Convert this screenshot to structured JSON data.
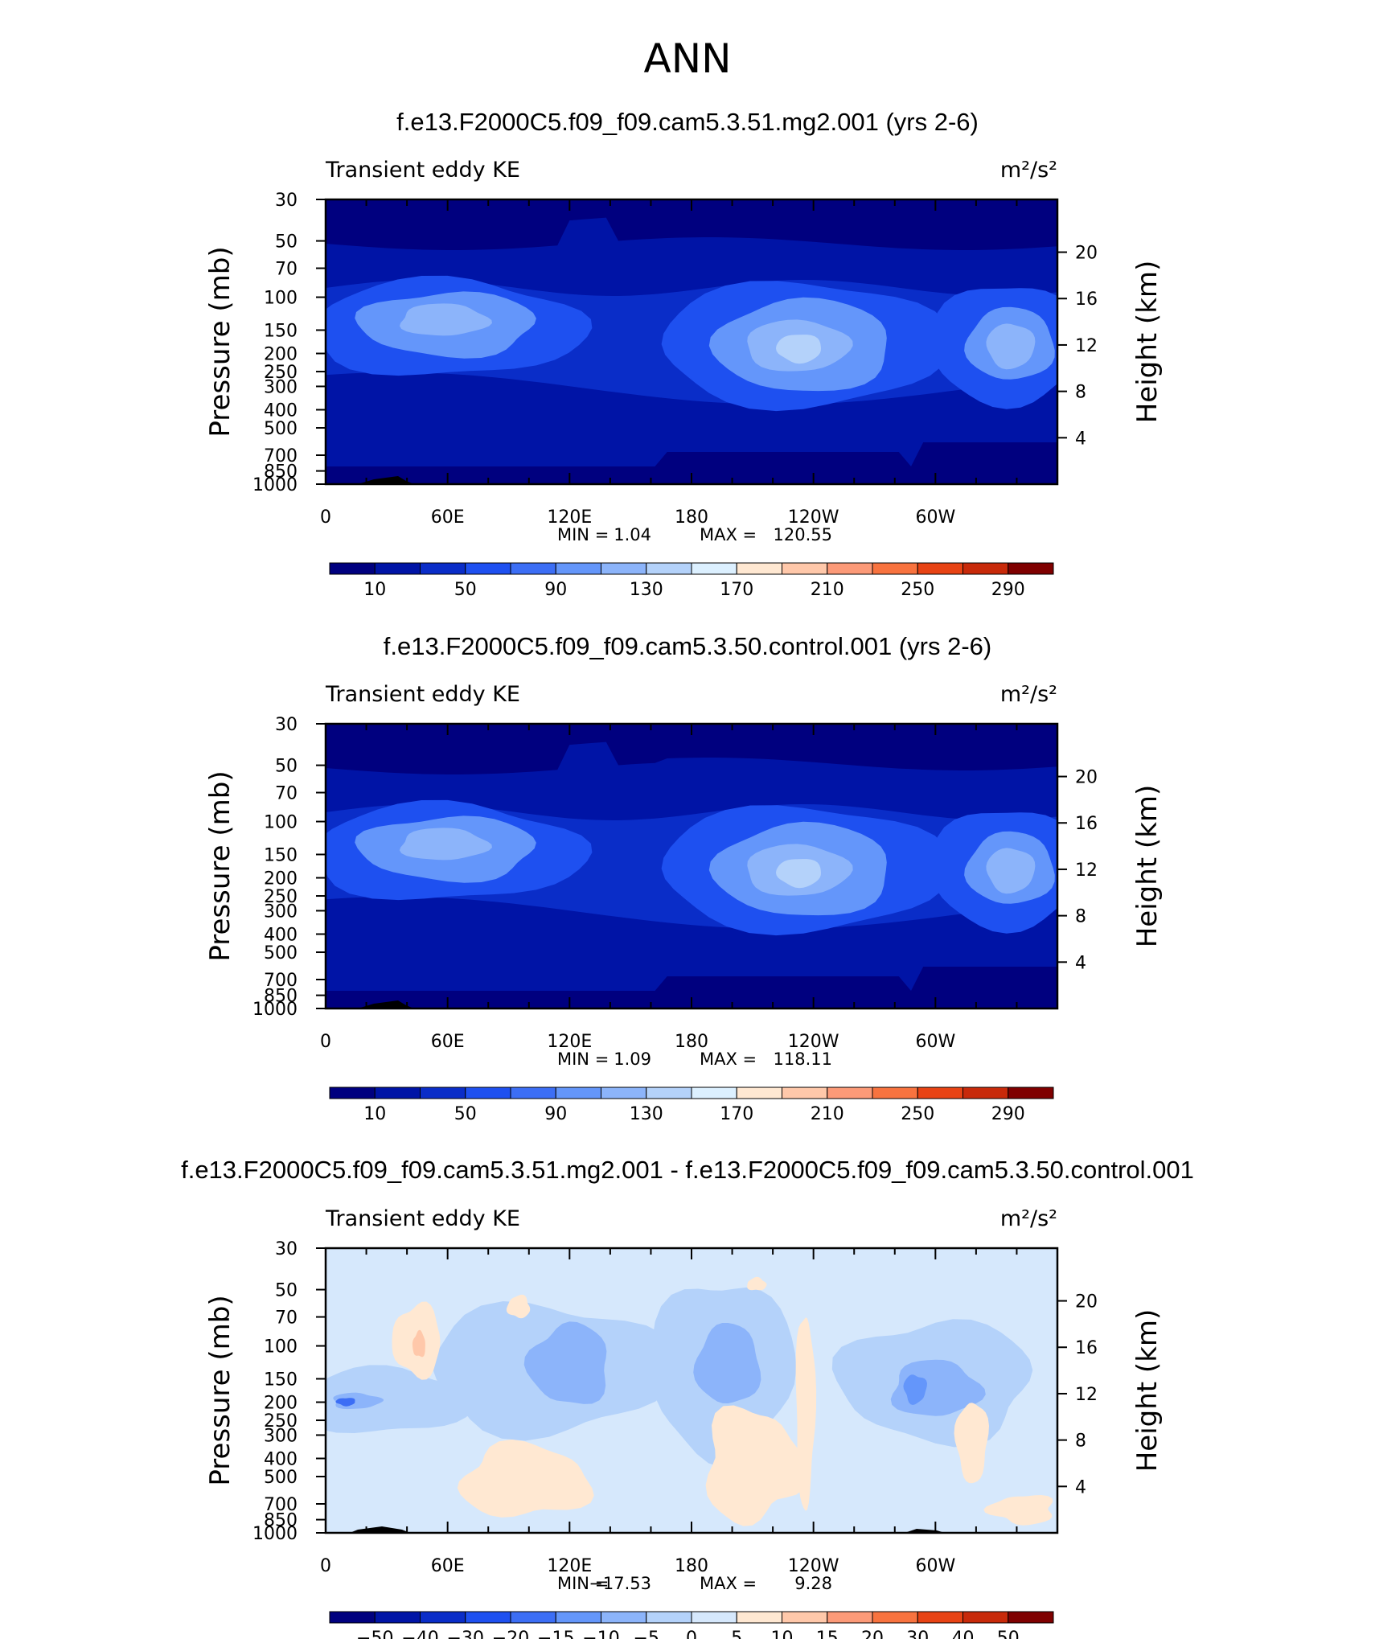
{
  "main_title": "ANN",
  "panels": [
    {
      "title": "f.e13.F2000C5.f09_f09.cam5.3.51.mg2.001 (yrs 2-6)",
      "variable": "Transient eddy KE",
      "units": "m²/s²",
      "min_label": "MIN =",
      "min_value": "1.04",
      "max_label": "MAX =",
      "max_value": "120.55",
      "colorbar_labels": [
        "10",
        "50",
        "90",
        "130",
        "170",
        "210",
        "250",
        "290"
      ]
    },
    {
      "title": "f.e13.F2000C5.f09_f09.cam5.3.50.control.001 (yrs 2-6)",
      "variable": "Transient eddy KE",
      "units": "m²/s²",
      "min_label": "MIN =",
      "min_value": "1.09",
      "max_label": "MAX =",
      "max_value": "118.11",
      "colorbar_labels": [
        "10",
        "50",
        "90",
        "130",
        "170",
        "210",
        "250",
        "290"
      ]
    },
    {
      "title": "f.e13.F2000C5.f09_f09.cam5.3.51.mg2.001 - f.e13.F2000C5.f09_f09.cam5.3.50.control.001",
      "variable": "Transient eddy KE",
      "units": "m²/s²",
      "min_label": "MIN =",
      "min_value": "−17.53",
      "max_label": "MAX =",
      "max_value": "9.28",
      "colorbar_labels": [
        "−50",
        "−40",
        "−30",
        "−20",
        "−15",
        "−10",
        "−5",
        "0",
        "5",
        "10",
        "15",
        "20",
        "30",
        "40",
        "50"
      ]
    }
  ],
  "axes": {
    "y_left_label": "Pressure (mb)",
    "y_right_label": "Height (km)",
    "x_ticks": [
      "0",
      "60E",
      "120E",
      "180",
      "120W",
      "60W"
    ],
    "pressure_ticks": [
      "30",
      "50",
      "70",
      "100",
      "150",
      "200",
      "250",
      "300",
      "400",
      "500",
      "700",
      "850",
      "1000"
    ],
    "height_ticks": [
      "20",
      "16",
      "12",
      "8",
      "4"
    ]
  },
  "chart_data": [
    {
      "type": "heatmap",
      "title": "f.e13.F2000C5.f09_f09.cam5.3.51.mg2.001 (yrs 2-6)",
      "variable": "Transient eddy KE",
      "units": "m²/s²",
      "x_dimension": "longitude",
      "x_ticks": [
        "0",
        "60E",
        "120E",
        "180",
        "120W",
        "60W"
      ],
      "y_dimension": "pressure (mb), log scale",
      "ylim": [
        1000,
        30
      ],
      "contour_levels": [
        10,
        30,
        50,
        70,
        90,
        110,
        130,
        150,
        170,
        190,
        210,
        230,
        250,
        270,
        290
      ],
      "min": 1.04,
      "max": 120.55,
      "features": [
        {
          "lon": 60,
          "pressure": 150,
          "value": 90
        },
        {
          "lon": 235,
          "pressure": 190,
          "value": 110
        },
        {
          "lon": 335,
          "pressure": 180,
          "value": 90
        },
        {
          "lon": 120,
          "pressure": 40,
          "value": 10
        }
      ]
    },
    {
      "type": "heatmap",
      "title": "f.e13.F2000C5.f09_f09.cam5.3.50.control.001 (yrs 2-6)",
      "variable": "Transient eddy KE",
      "units": "m²/s²",
      "x_dimension": "longitude",
      "x_ticks": [
        "0",
        "60E",
        "120E",
        "180",
        "120W",
        "60W"
      ],
      "y_dimension": "pressure (mb), log scale",
      "ylim": [
        1000,
        30
      ],
      "contour_levels": [
        10,
        30,
        50,
        70,
        90,
        110,
        130,
        150,
        170,
        190,
        210,
        230,
        250,
        270,
        290
      ],
      "min": 1.09,
      "max": 118.11,
      "features": [
        {
          "lon": 60,
          "pressure": 150,
          "value": 90
        },
        {
          "lon": 235,
          "pressure": 190,
          "value": 110
        },
        {
          "lon": 335,
          "pressure": 180,
          "value": 90
        }
      ]
    },
    {
      "type": "heatmap",
      "title": "f.e13.F2000C5.f09_f09.cam5.3.51.mg2.001 - f.e13.F2000C5.f09_f09.cam5.3.50.control.001",
      "variable": "Transient eddy KE",
      "units": "m²/s²",
      "x_dimension": "longitude",
      "x_ticks": [
        "0",
        "60E",
        "120E",
        "180",
        "120W",
        "60W"
      ],
      "y_dimension": "pressure (mb), log scale",
      "ylim": [
        1000,
        30
      ],
      "contour_levels": [
        -50,
        -40,
        -30,
        -20,
        -15,
        -10,
        -5,
        0,
        5,
        10,
        15,
        20,
        30,
        40,
        50
      ],
      "min": -17.53,
      "max": 9.28,
      "features": [
        {
          "lon": 105,
          "pressure": 140,
          "value": -10
        },
        {
          "lon": 195,
          "pressure": 150,
          "value": -10
        },
        {
          "lon": 290,
          "pressure": 170,
          "value": -15
        },
        {
          "lon": 45,
          "pressure": 95,
          "value": 5
        }
      ]
    }
  ],
  "colors": {
    "abs_palette": [
      "#00007f",
      "#0014a6",
      "#0a2dc8",
      "#1e50f0",
      "#3c6ef5",
      "#6496fa",
      "#8cb4fa",
      "#b4d2fa",
      "#dcf0ff",
      "#ffe8d2",
      "#ffc8aa",
      "#fc9a78",
      "#f8733f",
      "#e84314",
      "#c82a0a",
      "#7f0000"
    ],
    "diff_palette": [
      "#00007f",
      "#0014a6",
      "#0a2dc8",
      "#1e50f0",
      "#3c6ef5",
      "#6496fa",
      "#8cb4fa",
      "#b4d2fa",
      "#d6e8fc",
      "#ffe8d2",
      "#ffc8aa",
      "#fc9a78",
      "#f8733f",
      "#e84314",
      "#c82a0a",
      "#7f0000"
    ]
  }
}
